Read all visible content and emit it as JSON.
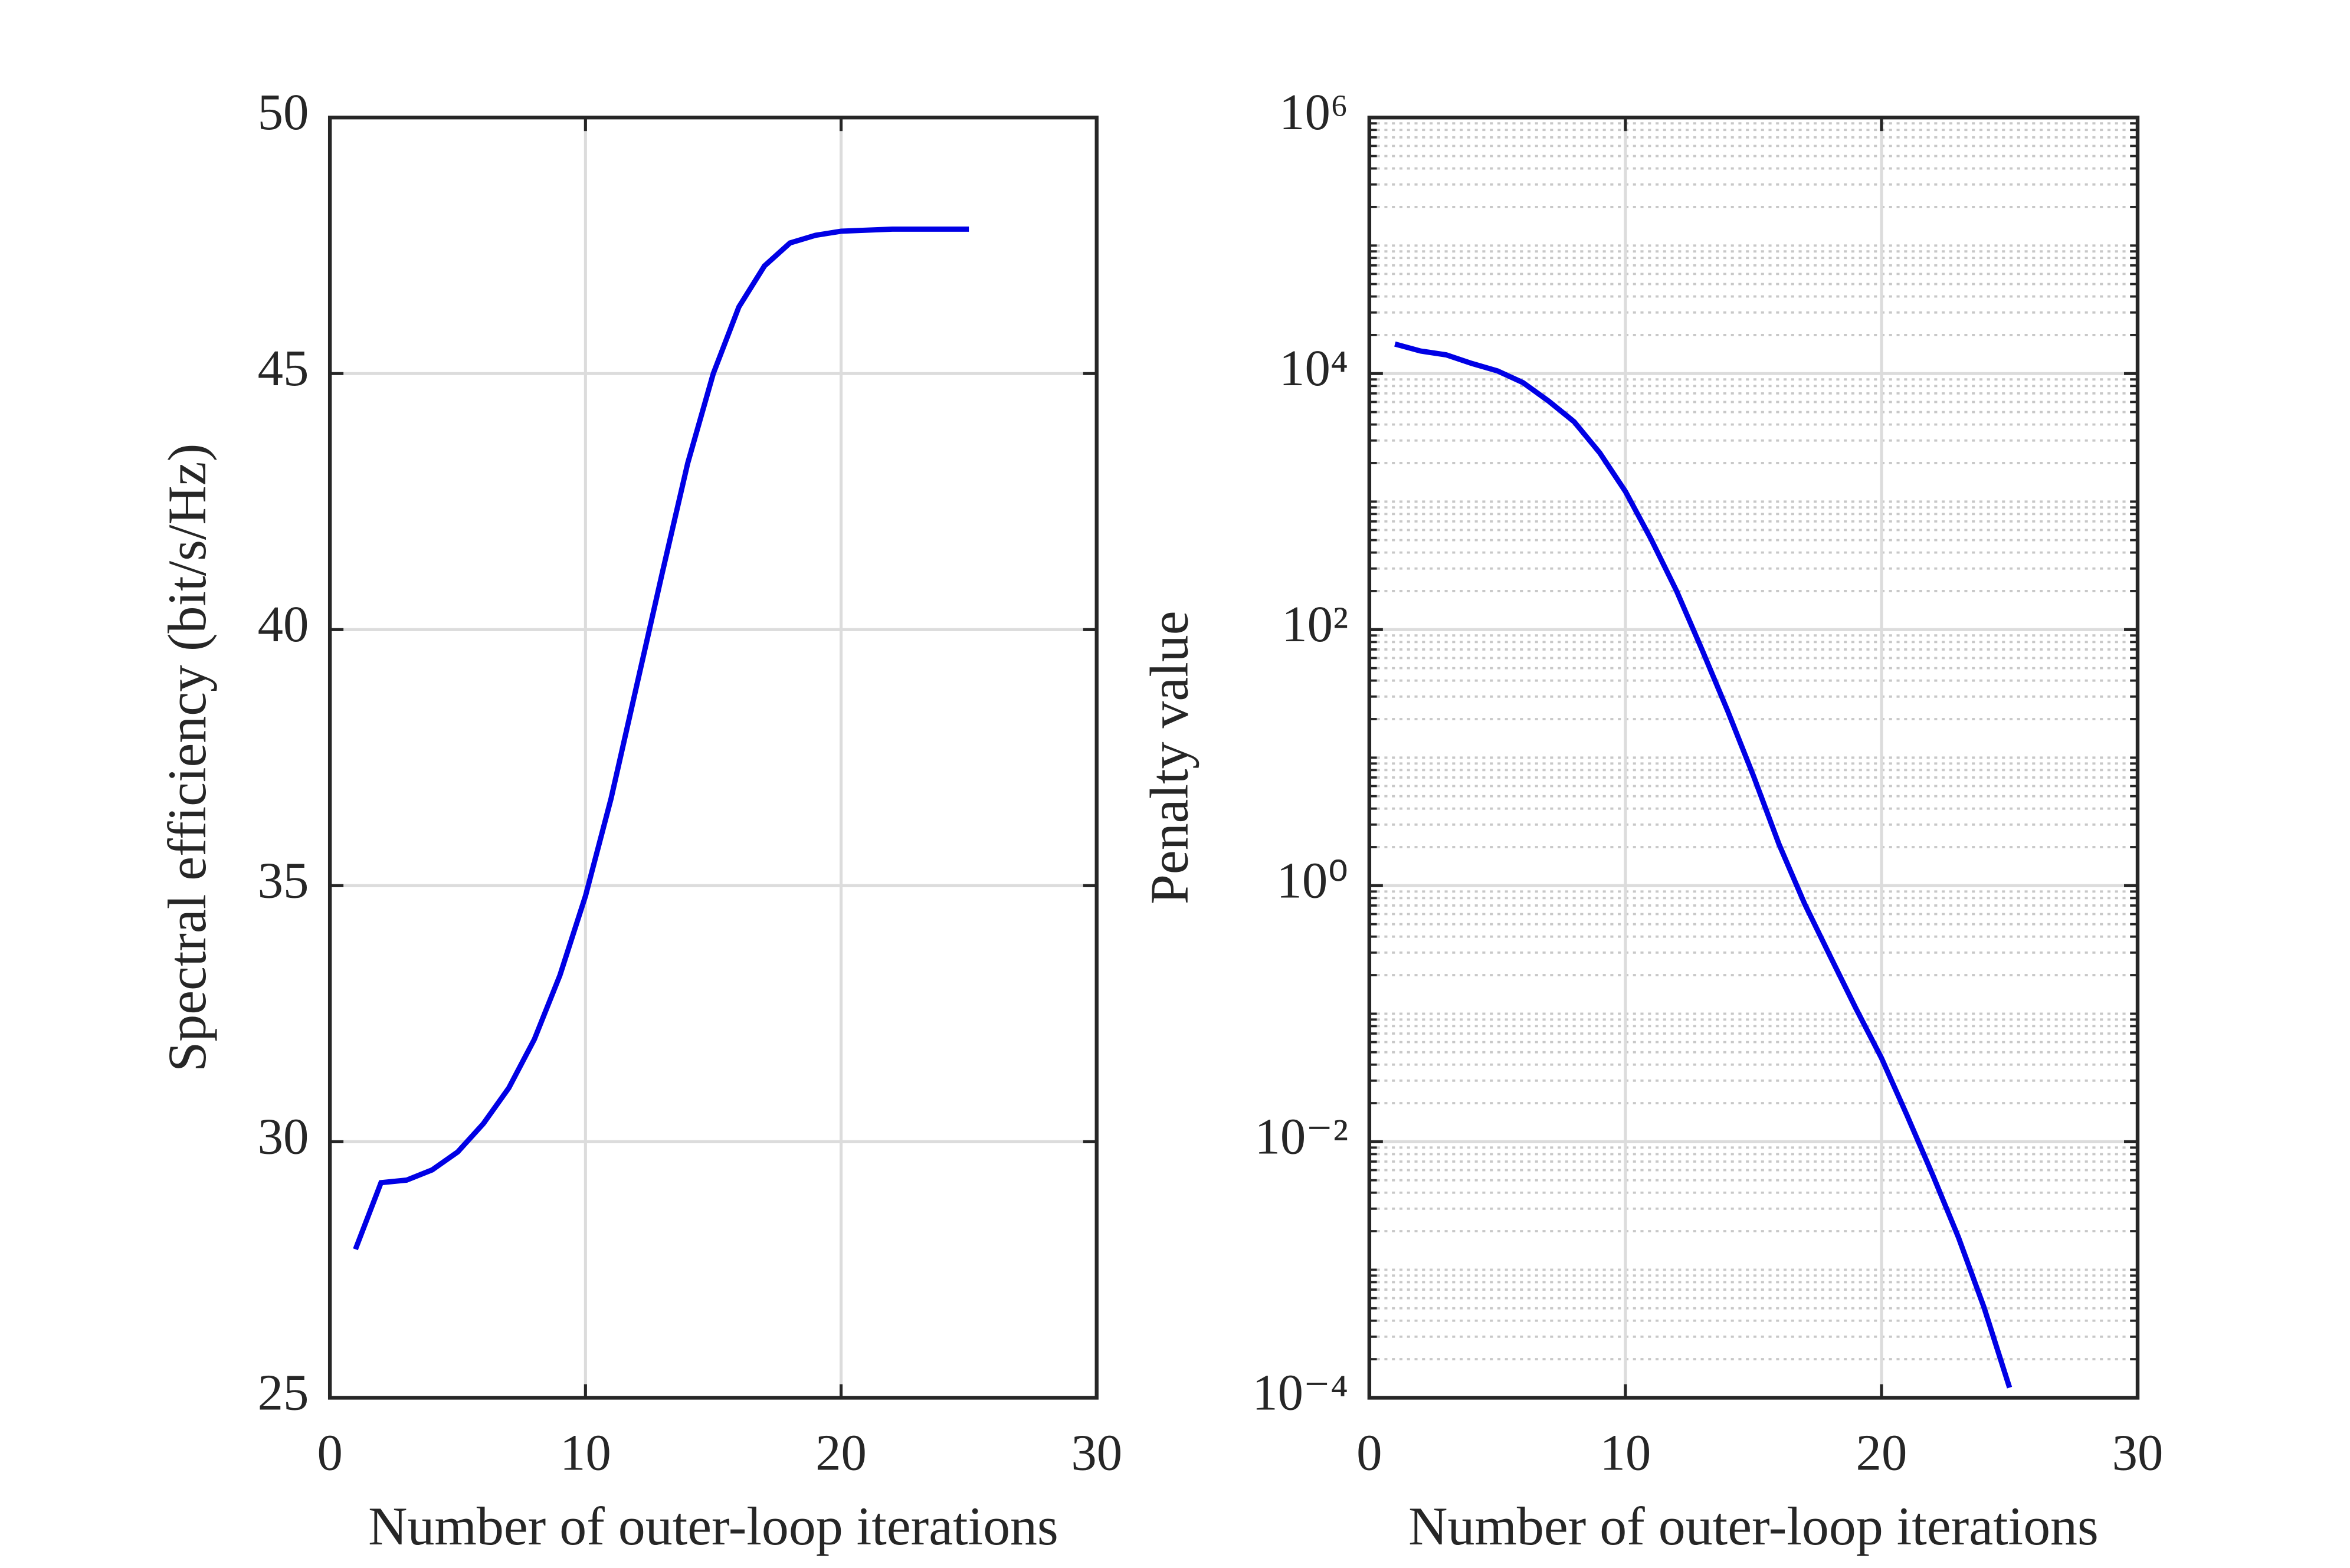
{
  "chart_data": [
    {
      "type": "line",
      "xlabel": "Number of outer-loop iterations",
      "ylabel": "Spectral efficiency (bit/s/Hz)",
      "x": [
        1,
        2,
        3,
        4,
        5,
        6,
        7,
        8,
        9,
        10,
        11,
        12,
        13,
        14,
        15,
        16,
        17,
        18,
        19,
        20,
        21,
        22,
        23,
        24,
        25
      ],
      "series": [
        {
          "color": "#0000e5",
          "values": [
            27.9,
            29.2,
            29.25,
            29.45,
            29.8,
            30.35,
            31.05,
            32.0,
            33.25,
            34.8,
            36.7,
            38.9,
            41.1,
            43.25,
            45.0,
            46.3,
            47.1,
            47.55,
            47.7,
            47.78,
            47.8,
            47.82,
            47.82,
            47.82,
            47.82
          ]
        }
      ],
      "xlim": [
        0,
        30
      ],
      "xticks": [
        0,
        10,
        20,
        30
      ],
      "ylim": [
        25,
        50
      ],
      "yticks": [
        25,
        30,
        35,
        40,
        45,
        50
      ],
      "grid": true
    },
    {
      "type": "line",
      "xlabel": "Number of outer-loop iterations",
      "ylabel": "Penalty value",
      "x": [
        1,
        2,
        3,
        4,
        5,
        6,
        7,
        8,
        9,
        10,
        11,
        12,
        13,
        14,
        15,
        16,
        17,
        18,
        19,
        20,
        21,
        22,
        23,
        24,
        25
      ],
      "series": [
        {
          "color": "#0000e5",
          "values": [
            17000,
            15000,
            14000,
            12000,
            10500,
            8500,
            6100,
            4200,
            2400,
            1200,
            510,
            200,
            69,
            23,
            7.2,
            2.1,
            0.72,
            0.28,
            0.11,
            0.045,
            0.016,
            0.0055,
            0.0018,
            0.00051,
            0.00012
          ]
        }
      ],
      "xlim": [
        0,
        30
      ],
      "xticks": [
        0,
        10,
        20,
        30
      ],
      "ylim": [
        0.0001,
        1000000
      ],
      "yticks": [
        {
          "value": 0.0001,
          "label": "10⁻⁴"
        },
        {
          "value": 0.01,
          "label": "10⁻²"
        },
        {
          "value": 1,
          "label": "10⁰"
        },
        {
          "value": 100,
          "label": "10²"
        },
        {
          "value": 10000,
          "label": "10⁴"
        },
        {
          "value": 1000000,
          "label": "10⁶"
        }
      ],
      "ylog": true,
      "grid": true,
      "minor_grid": true
    }
  ]
}
